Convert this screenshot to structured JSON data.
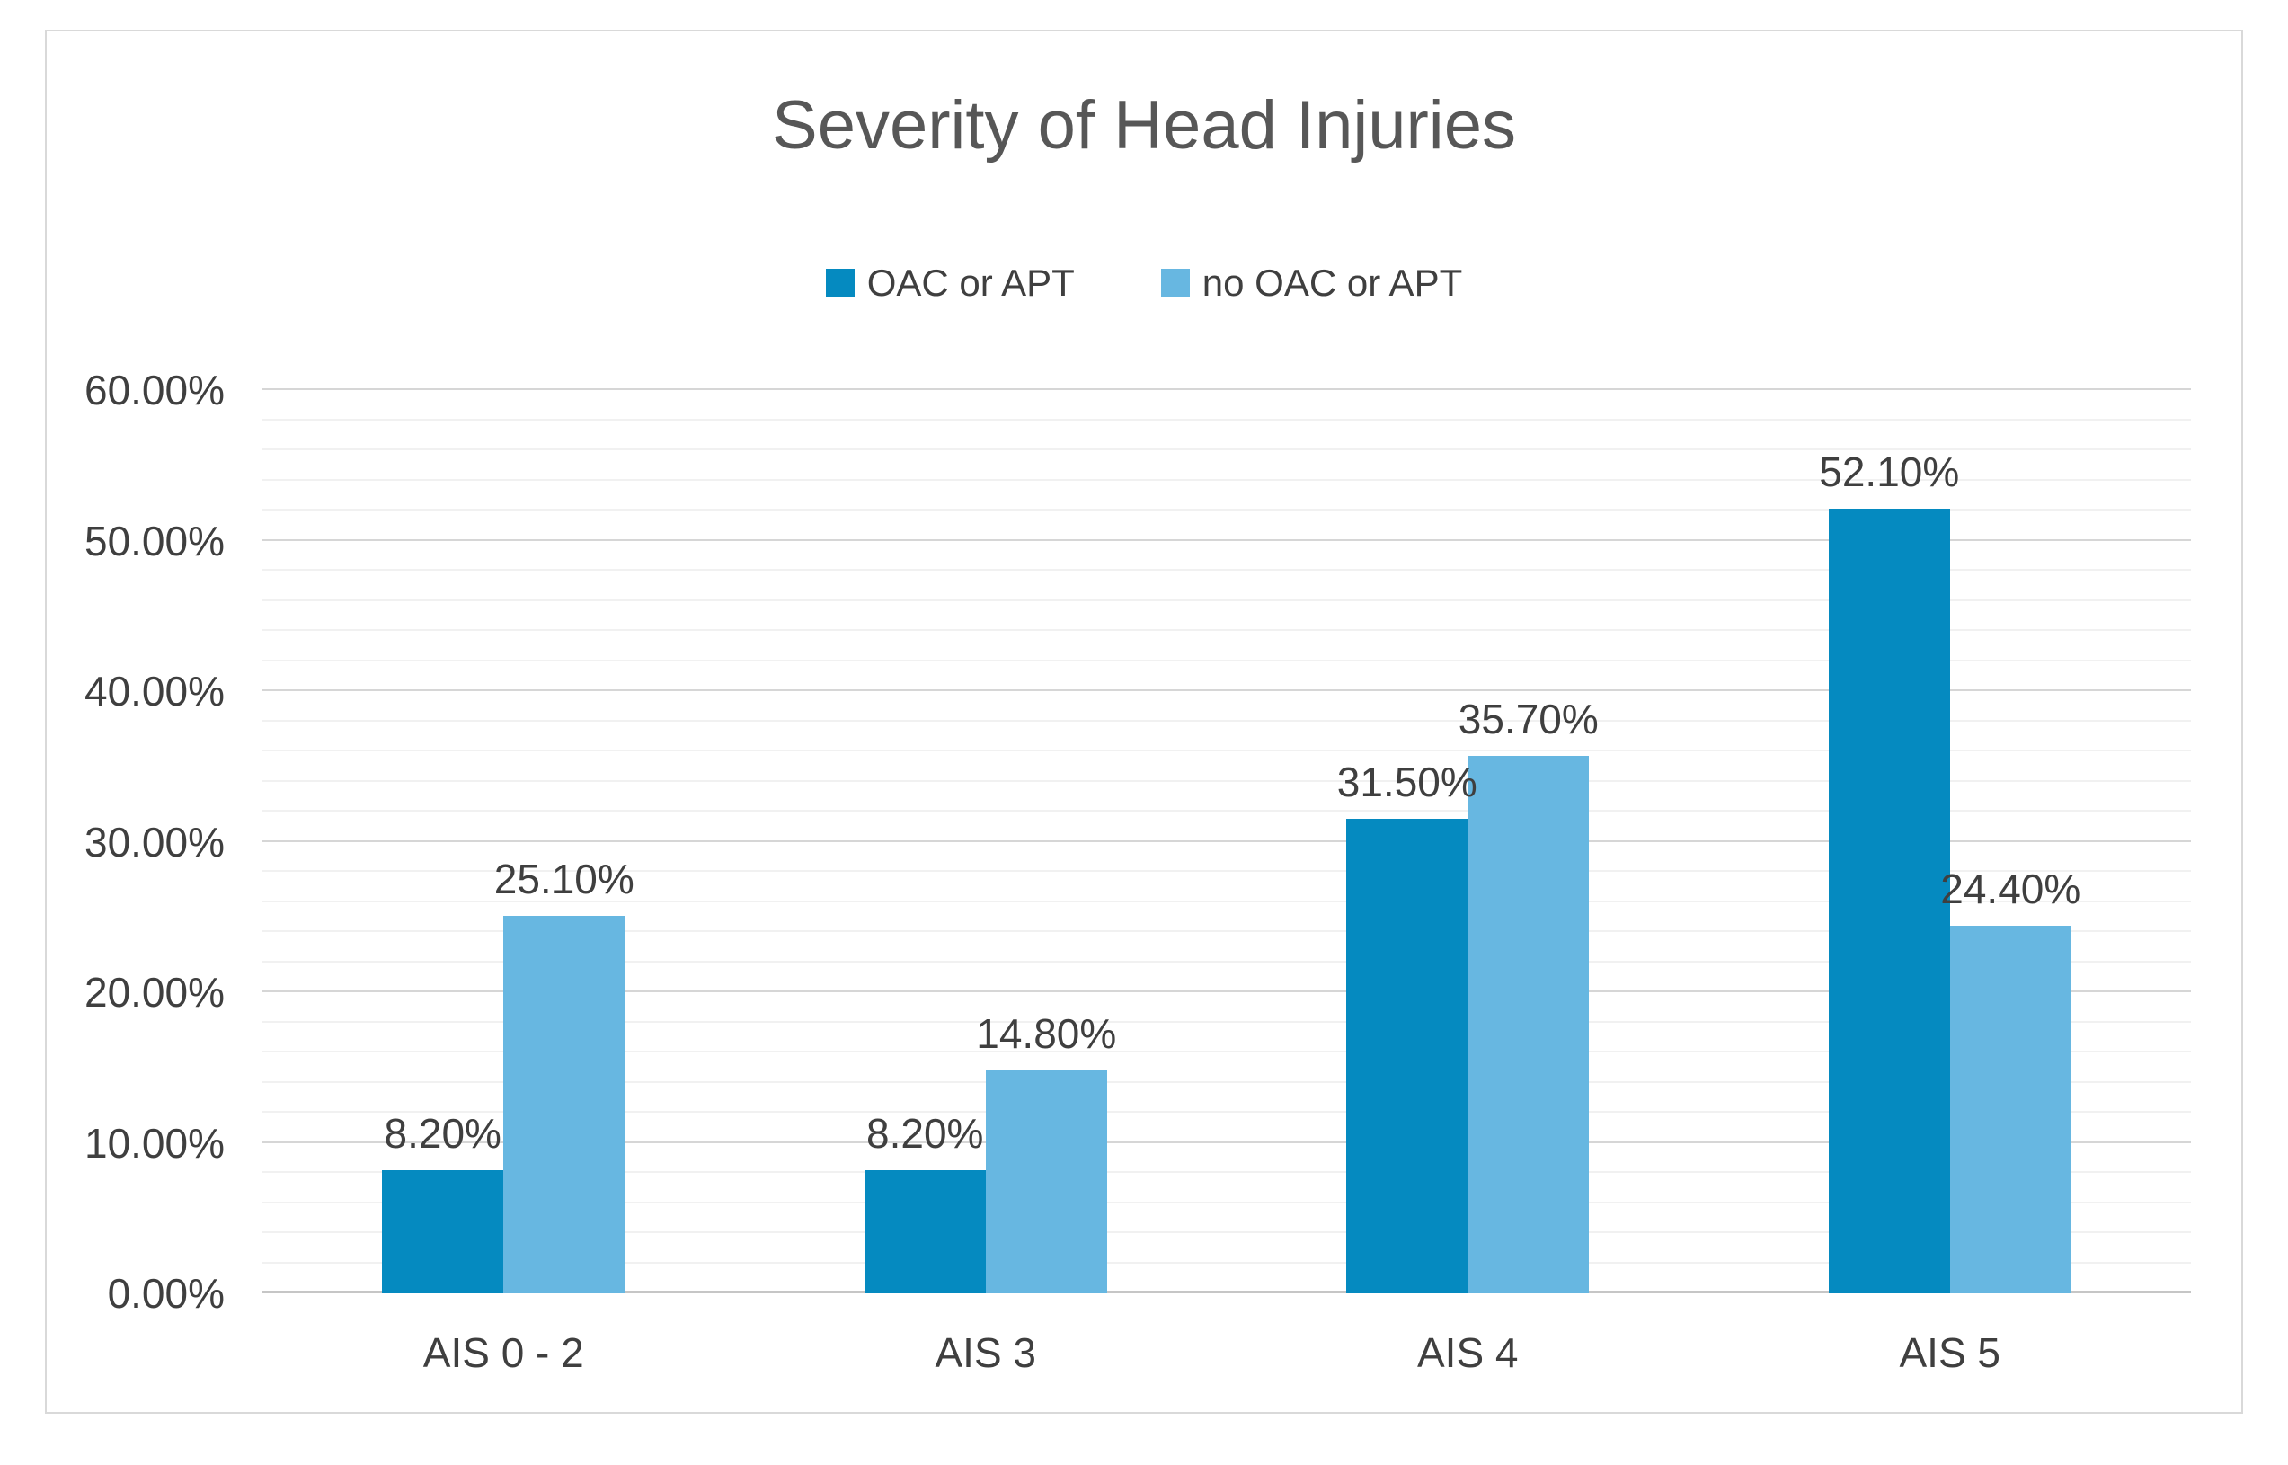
{
  "chart_data": {
    "type": "bar",
    "title": "Severity of Head Injuries",
    "categories": [
      "AIS 0 - 2",
      "AIS 3",
      "AIS 4",
      "AIS 5"
    ],
    "series": [
      {
        "name": "OAC or APT",
        "color": "#058ac0",
        "values": [
          8.2,
          8.2,
          31.5,
          52.1
        ],
        "data_labels": [
          "8.20%",
          "8.20%",
          "31.50%",
          "52.10%"
        ]
      },
      {
        "name": "no OAC or APT",
        "color": "#67b7e1",
        "values": [
          25.1,
          14.8,
          35.7,
          24.4
        ],
        "data_labels": [
          "25.10%",
          "14.80%",
          "35.70%",
          "24.40%"
        ]
      }
    ],
    "xlabel": "",
    "ylabel": "",
    "y_axis": {
      "min": 0,
      "max": 60,
      "major_step": 10,
      "minor_step": 2,
      "tick_labels": [
        "0.00%",
        "10.00%",
        "20.00%",
        "30.00%",
        "40.00%",
        "50.00%",
        "60.00%"
      ]
    },
    "grid": {
      "major": true,
      "minor": true
    },
    "legend_position": "top",
    "colors": {
      "major_grid": "#d6d6d6",
      "minor_grid": "#f1f1f1",
      "axis_line": "#c6c6c6",
      "frame_border": "#d9d9d9",
      "title_text": "#575757",
      "label_text": "#3f3f3f",
      "background": "#ffffff"
    }
  }
}
